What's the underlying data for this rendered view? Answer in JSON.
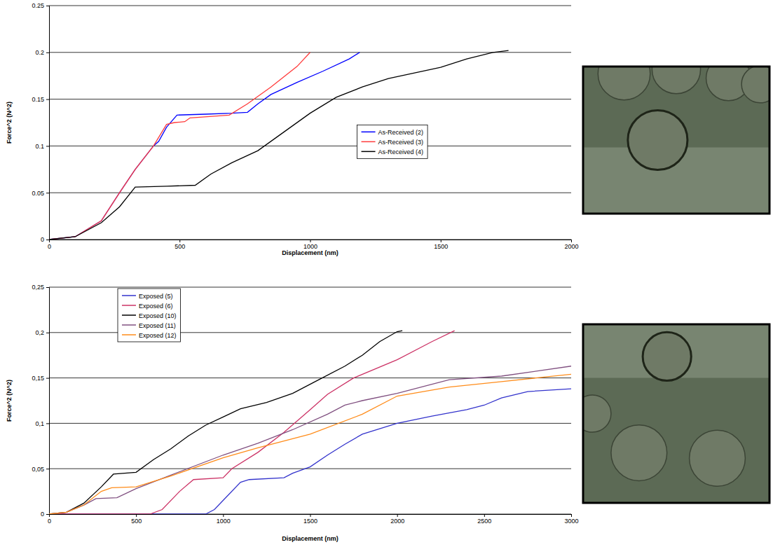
{
  "chart_data": [
    {
      "type": "line",
      "x_label": "Displacement (nm)",
      "y_label": "Force^2 (N^2)",
      "xlim": [
        0,
        2000
      ],
      "xticks": [
        0,
        500,
        1000,
        1500,
        2000
      ],
      "ylim": [
        0,
        0.25
      ],
      "yticks": [
        0,
        0.05,
        0.1,
        0.15,
        0.2,
        0.25
      ],
      "grid": true,
      "legend": "right",
      "series": [
        {
          "name": "As-Received (2)",
          "color": "#0000ff",
          "x": [
            0,
            100,
            200,
            270,
            330,
            400,
            420,
            450,
            490,
            600,
            700,
            760,
            800,
            850,
            950,
            1050,
            1150,
            1190
          ],
          "values": [
            0,
            0.003,
            0.02,
            0.05,
            0.075,
            0.1,
            0.105,
            0.12,
            0.133,
            0.134,
            0.135,
            0.136,
            0.145,
            0.155,
            0.168,
            0.18,
            0.193,
            0.2
          ]
        },
        {
          "name": "As-Received (3)",
          "color": "#ff3b3b",
          "x": [
            0,
            100,
            200,
            270,
            330,
            400,
            450,
            480,
            520,
            540,
            690,
            760,
            850,
            950,
            1000
          ],
          "values": [
            0,
            0.003,
            0.02,
            0.05,
            0.075,
            0.1,
            0.123,
            0.125,
            0.126,
            0.13,
            0.133,
            0.145,
            0.163,
            0.185,
            0.2
          ]
        },
        {
          "name": "As-Received (4)",
          "color": "#000000",
          "x": [
            0,
            100,
            200,
            270,
            330,
            450,
            560,
            620,
            700,
            800,
            900,
            1000,
            1100,
            1200,
            1300,
            1400,
            1500,
            1600,
            1700,
            1760
          ],
          "values": [
            0,
            0.003,
            0.018,
            0.035,
            0.056,
            0.057,
            0.058,
            0.07,
            0.082,
            0.095,
            0.115,
            0.135,
            0.152,
            0.163,
            0.172,
            0.178,
            0.184,
            0.193,
            0.2,
            0.202
          ]
        }
      ]
    },
    {
      "type": "line",
      "x_label": "Displacement (nm)",
      "y_label": "Force^2 (N^2)",
      "xlim": [
        0,
        3000
      ],
      "xticks": [
        0,
        500,
        1000,
        1500,
        2000,
        2500,
        3000
      ],
      "ylim": [
        0,
        0.25
      ],
      "yticks": [
        0,
        {
          "value": 0.05,
          "label": "0,05"
        },
        {
          "value": 0.1,
          "label": "0,1"
        },
        {
          "value": 0.15,
          "label": "0,15"
        },
        {
          "value": 0.2,
          "label": "0,2"
        },
        {
          "value": 0.25,
          "label": "0,25"
        }
      ],
      "grid": true,
      "legend": "upper left",
      "series": [
        {
          "name": "Exposed (5)",
          "color": "#3333cc",
          "x": [
            0,
            900,
            950,
            1000,
            1100,
            1150,
            1350,
            1400,
            1500,
            1600,
            1700,
            1800,
            2000,
            2200,
            2400,
            2500,
            2600,
            2750,
            3000
          ],
          "values": [
            0,
            0,
            0.005,
            0.015,
            0.035,
            0.038,
            0.04,
            0.045,
            0.052,
            0.065,
            0.077,
            0.088,
            0.1,
            0.108,
            0.115,
            0.12,
            0.128,
            0.135,
            0.138
          ]
        },
        {
          "name": "Exposed (6)",
          "color": "#cc3366",
          "x": [
            0,
            580,
            650,
            750,
            830,
            1000,
            1050,
            1200,
            1350,
            1500,
            1600,
            1750,
            2000,
            2200,
            2330
          ],
          "values": [
            0,
            0,
            0.005,
            0.025,
            0.038,
            0.04,
            0.05,
            0.068,
            0.09,
            0.115,
            0.132,
            0.15,
            0.17,
            0.19,
            0.202
          ]
        },
        {
          "name": "Exposed (10)",
          "color": "#000000",
          "x": [
            0,
            100,
            200,
            300,
            370,
            500,
            600,
            700,
            800,
            900,
            1000,
            1100,
            1250,
            1400,
            1550,
            1700,
            1800,
            1900,
            2000,
            2030
          ],
          "values": [
            0,
            0.002,
            0.012,
            0.03,
            0.044,
            0.046,
            0.06,
            0.072,
            0.086,
            0.098,
            0.107,
            0.116,
            0.123,
            0.133,
            0.148,
            0.163,
            0.175,
            0.19,
            0.201,
            0.202
          ]
        },
        {
          "name": "Exposed (11)",
          "color": "#805080",
          "x": [
            0,
            100,
            200,
            270,
            390,
            500,
            700,
            1000,
            1200,
            1400,
            1600,
            1700,
            1800,
            2000,
            2300,
            2600,
            3000
          ],
          "values": [
            0,
            0.002,
            0.01,
            0.017,
            0.018,
            0.028,
            0.043,
            0.065,
            0.078,
            0.093,
            0.11,
            0.12,
            0.125,
            0.133,
            0.148,
            0.152,
            0.163
          ]
        },
        {
          "name": "Exposed (12)",
          "color": "#ff8c1a",
          "x": [
            0,
            100,
            200,
            300,
            360,
            500,
            700,
            1000,
            1200,
            1500,
            1800,
            2000,
            2300,
            2600,
            3000
          ],
          "values": [
            0,
            0.002,
            0.01,
            0.025,
            0.029,
            0.03,
            0.042,
            0.062,
            0.073,
            0.088,
            0.11,
            0.13,
            0.14,
            0.146,
            0.154
          ]
        }
      ]
    }
  ]
}
